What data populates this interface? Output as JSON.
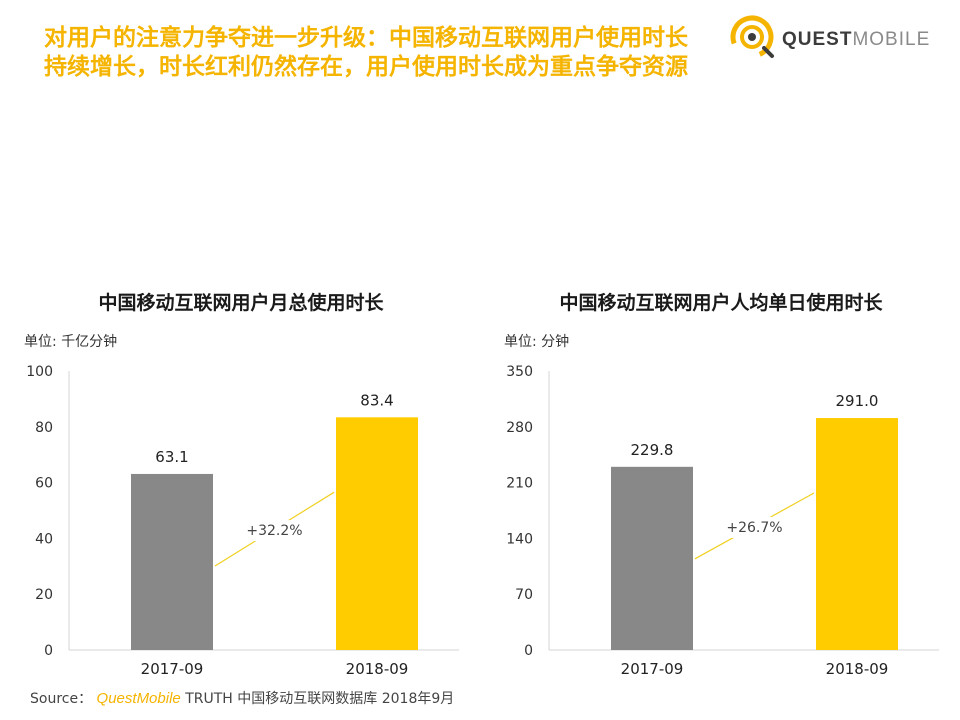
{
  "headline": {
    "line1": "对用户的注意力争夺进一步升级：中国移动互联网用户使用时长",
    "line2": "持续增长，时长红利仍然存在，用户使用时长成为重点争夺资源"
  },
  "logo": {
    "quest": "QUEST",
    "mobile": "MOBILE"
  },
  "source": {
    "label": "Source：",
    "brand": "QuestMobile",
    "text": "TRUTH 中国移动互联网数据库 2018年9月"
  },
  "colors": {
    "accent": "#f5b400",
    "bar_2017": "#888889",
    "bar_2018": "#ffcc00",
    "growth_line": "#f0d020"
  },
  "chart_data": [
    {
      "type": "bar",
      "title": "中国移动互联网用户月总使用时长",
      "unit": "单位: 千亿分钟",
      "categories": [
        "2017-09",
        "2018-09"
      ],
      "values": [
        63.1,
        83.4
      ],
      "value_labels": [
        "63.1",
        "83.4"
      ],
      "ylim": [
        0,
        100
      ],
      "yticks": [
        0,
        20,
        40,
        60,
        80,
        100
      ],
      "growth_label": "+32.2%",
      "grid": false
    },
    {
      "type": "bar",
      "title": "中国移动互联网用户人均单日使用时长",
      "unit": "单位: 分钟",
      "categories": [
        "2017-09",
        "2018-09"
      ],
      "values": [
        229.8,
        291.0
      ],
      "value_labels": [
        "229.8",
        "291.0"
      ],
      "ylim": [
        0,
        350
      ],
      "yticks": [
        0,
        70,
        140,
        210,
        280,
        350
      ],
      "growth_label": "+26.7%",
      "grid": false
    }
  ]
}
